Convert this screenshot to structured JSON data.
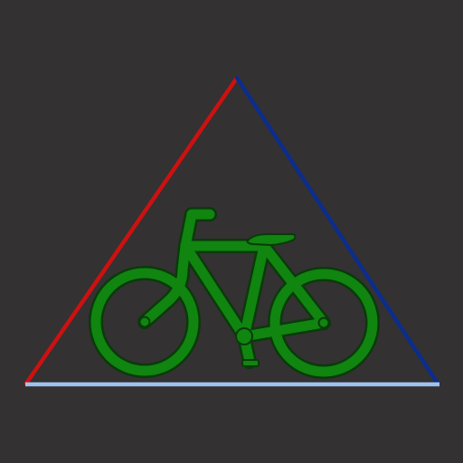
{
  "background_color": "#333132",
  "triangle": {
    "left_edge_color": "#CC1111",
    "right_edge_color": "#0C2D8C",
    "base_color": "#9FC2EE"
  },
  "bicycle": {
    "icon": "bicycle-icon",
    "fill_color": "#108510",
    "outline_color": "#0A3A0A"
  }
}
